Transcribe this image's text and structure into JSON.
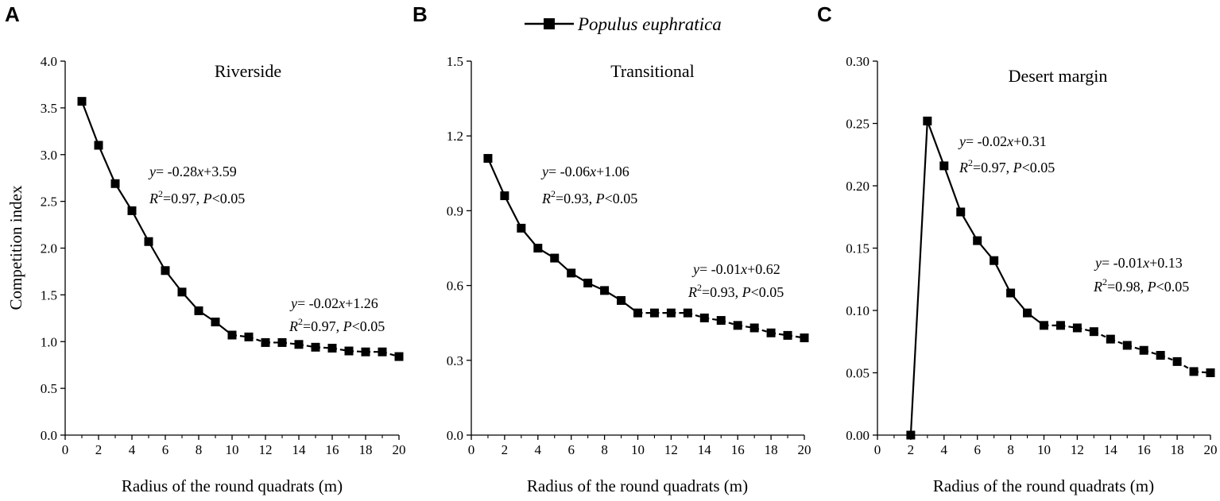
{
  "legend": {
    "label": "Populus euphratica",
    "marker": "filled-square",
    "color": "#000000"
  },
  "chart_data": [
    {
      "panel": "A",
      "type": "line",
      "title": "Riverside",
      "xlabel": "Radius of the round quadrats (m)",
      "ylabel": "Competition index",
      "xlim": [
        0,
        20
      ],
      "ylim": [
        0,
        4.0
      ],
      "xticks": [
        "0",
        "2",
        "4",
        "6",
        "8",
        "10",
        "12",
        "14",
        "16",
        "18",
        "20"
      ],
      "yticks": [
        "0.0",
        "0.5",
        "1.0",
        "1.5",
        "2.0",
        "2.5",
        "3.0",
        "3.5",
        "4.0"
      ],
      "series": [
        {
          "name": "Populus euphratica",
          "x": [
            1,
            2,
            3,
            4,
            5,
            6,
            7,
            8,
            9,
            10,
            11,
            12,
            13,
            14,
            15,
            16,
            17,
            18,
            19,
            20
          ],
          "y": [
            3.57,
            3.1,
            2.69,
            2.4,
            2.07,
            1.76,
            1.53,
            1.33,
            1.21,
            1.07,
            1.05,
            0.99,
            0.99,
            0.97,
            0.94,
            0.93,
            0.9,
            0.89,
            0.89,
            0.84
          ],
          "solid_until_x": 10
        }
      ],
      "annotations": [
        {
          "y_part": "y",
          "eq_part": "= -0.28",
          "x_part": "x",
          "const_part": "+3.59",
          "r2_prefix": "R",
          "r2_sup": "2",
          "r2_value": "=0.97, ",
          "p_label": "P",
          "p_value": "<0.05"
        },
        {
          "y_part": "y",
          "eq_part": "= -0.02",
          "x_part": "x",
          "const_part": "+1.26",
          "r2_prefix": "R",
          "r2_sup": "2",
          "r2_value": "=0.97, ",
          "p_label": "P",
          "p_value": "<0.05"
        }
      ]
    },
    {
      "panel": "B",
      "type": "line",
      "title": "Transitional",
      "xlabel": "Radius of the round quadrats (m)",
      "ylabel": "",
      "xlim": [
        0,
        20
      ],
      "ylim": [
        0,
        1.5
      ],
      "xticks": [
        "0",
        "2",
        "4",
        "6",
        "8",
        "10",
        "12",
        "14",
        "16",
        "18",
        "20"
      ],
      "yticks": [
        "0.0",
        "0.3",
        "0.6",
        "0.9",
        "1.2",
        "1.5"
      ],
      "series": [
        {
          "name": "Populus euphratica",
          "x": [
            1,
            2,
            3,
            4,
            5,
            6,
            7,
            8,
            9,
            10,
            11,
            12,
            13,
            14,
            15,
            16,
            17,
            18,
            19,
            20
          ],
          "y": [
            1.11,
            0.96,
            0.83,
            0.75,
            0.71,
            0.65,
            0.61,
            0.58,
            0.54,
            0.49,
            0.49,
            0.49,
            0.49,
            0.47,
            0.46,
            0.44,
            0.43,
            0.41,
            0.4,
            0.39
          ],
          "solid_until_x": 10
        }
      ],
      "annotations": [
        {
          "y_part": "y",
          "eq_part": "= -0.06",
          "x_part": "x",
          "const_part": "+1.06",
          "r2_prefix": "R",
          "r2_sup": "2",
          "r2_value": "=0.93, ",
          "p_label": "P",
          "p_value": "<0.05"
        },
        {
          "y_part": "y",
          "eq_part": "= -0.01",
          "x_part": "x",
          "const_part": "+0.62",
          "r2_prefix": "R",
          "r2_sup": "2",
          "r2_value": "=0.93, ",
          "p_label": "P",
          "p_value": "<0.05"
        }
      ]
    },
    {
      "panel": "C",
      "type": "line",
      "title": "Desert margin",
      "xlabel": "Radius of the round quadrats (m)",
      "ylabel": "",
      "xlim": [
        0,
        20
      ],
      "ylim": [
        0,
        0.3
      ],
      "xticks": [
        "0",
        "2",
        "4",
        "6",
        "8",
        "10",
        "12",
        "14",
        "16",
        "18",
        "20"
      ],
      "yticks": [
        "0.00",
        "0.05",
        "0.10",
        "0.15",
        "0.20",
        "0.25",
        "0.30"
      ],
      "series": [
        {
          "name": "Populus euphratica",
          "x": [
            2,
            3,
            4,
            5,
            6,
            7,
            8,
            9,
            10,
            11,
            12,
            13,
            14,
            15,
            16,
            17,
            18,
            19,
            20
          ],
          "y": [
            0.0,
            0.252,
            0.216,
            0.179,
            0.156,
            0.14,
            0.114,
            0.098,
            0.088,
            0.088,
            0.086,
            0.083,
            0.077,
            0.072,
            0.068,
            0.064,
            0.059,
            0.051,
            0.05
          ],
          "solid_until_x": 10
        }
      ],
      "annotations": [
        {
          "y_part": "y",
          "eq_part": "= -0.02",
          "x_part": "x",
          "const_part": "+0.31",
          "r2_prefix": "R",
          "r2_sup": "2",
          "r2_value": "=0.97, ",
          "p_label": "P",
          "p_value": "<0.05"
        },
        {
          "y_part": "y",
          "eq_part": "= -0.01",
          "x_part": "x",
          "const_part": "+0.13",
          "r2_prefix": "R",
          "r2_sup": "2",
          "r2_value": "=0.98, ",
          "p_label": "P",
          "p_value": "<0.05"
        }
      ]
    }
  ]
}
